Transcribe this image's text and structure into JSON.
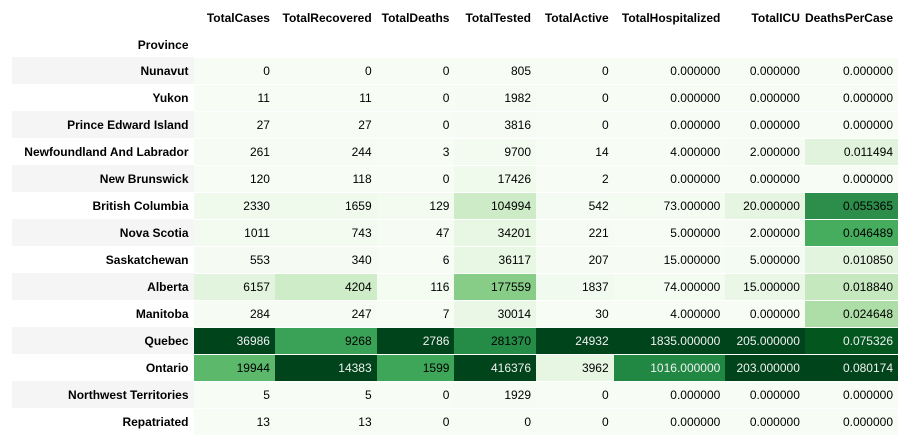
{
  "index_name": "Province",
  "columns": [
    "TotalCases",
    "TotalRecovered",
    "TotalDeaths",
    "TotalTested",
    "TotalActive",
    "TotalHospitalized",
    "TotalICU",
    "DeathsPerCase"
  ],
  "rows": [
    {
      "province": "Nunavut",
      "values": [
        "0",
        "0",
        "0",
        "805",
        "0",
        "0.000000",
        "0.000000",
        "0.000000"
      ],
      "colors": [
        "#f7fcf5",
        "#f7fcf5",
        "#f7fcf5",
        "#f7fcf5",
        "#f7fcf5",
        "#f7fcf5",
        "#f7fcf5",
        "#f7fcf5"
      ]
    },
    {
      "province": "Yukon",
      "values": [
        "11",
        "11",
        "0",
        "1982",
        "0",
        "0.000000",
        "0.000000",
        "0.000000"
      ],
      "colors": [
        "#f7fcf5",
        "#f7fcf5",
        "#f7fcf5",
        "#f6fcf4",
        "#f7fcf5",
        "#f7fcf5",
        "#f7fcf5",
        "#f7fcf5"
      ]
    },
    {
      "province": "Prince Edward Island",
      "values": [
        "27",
        "27",
        "0",
        "3816",
        "0",
        "0.000000",
        "0.000000",
        "0.000000"
      ],
      "colors": [
        "#f7fcf5",
        "#f7fcf5",
        "#f7fcf5",
        "#f6fcf4",
        "#f7fcf5",
        "#f7fcf5",
        "#f7fcf5",
        "#f7fcf5"
      ]
    },
    {
      "province": "Newfoundland And Labrador",
      "values": [
        "261",
        "244",
        "3",
        "9700",
        "14",
        "4.000000",
        "2.000000",
        "0.011494"
      ],
      "colors": [
        "#f6fcf4",
        "#f6fcf4",
        "#f7fcf5",
        "#f3faf0",
        "#f7fcf5",
        "#f7fcf5",
        "#f6fcf4",
        "#e1f3dc"
      ]
    },
    {
      "province": "New Brunswick",
      "values": [
        "120",
        "118",
        "0",
        "17426",
        "2",
        "0.000000",
        "0.000000",
        "0.000000"
      ],
      "colors": [
        "#f7fcf5",
        "#f7fcf5",
        "#f7fcf5",
        "#eff9ec",
        "#f7fcf5",
        "#f7fcf5",
        "#f7fcf5",
        "#f7fcf5"
      ]
    },
    {
      "province": "British Columbia",
      "values": [
        "2330",
        "1659",
        "129",
        "104994",
        "542",
        "73.000000",
        "20.000000",
        "0.055365"
      ],
      "colors": [
        "#eff9ec",
        "#eff9ec",
        "#f3faf0",
        "#ccebc6",
        "#f4fbf2",
        "#f4fbf1",
        "#e5f5e1",
        "#2c8e4a"
      ]
    },
    {
      "province": "Nova Scotia",
      "values": [
        "1011",
        "743",
        "47",
        "34201",
        "221",
        "5.000000",
        "2.000000",
        "0.046489"
      ],
      "colors": [
        "#f3faf0",
        "#f3faf0",
        "#f6fcf4",
        "#e8f6e4",
        "#f6fcf4",
        "#f7fcf5",
        "#f6fcf4",
        "#45ad5d"
      ]
    },
    {
      "province": "Saskatchewan",
      "values": [
        "553",
        "340",
        "6",
        "36117",
        "207",
        "15.000000",
        "5.000000",
        "0.010850"
      ],
      "colors": [
        "#f5fbf3",
        "#f5fbf3",
        "#f7fcf5",
        "#e8f6e4",
        "#f6fcf4",
        "#f6fcf4",
        "#f4fbf2",
        "#e3f4de"
      ]
    },
    {
      "province": "Alberta",
      "values": [
        "6157",
        "4204",
        "116",
        "177559",
        "1837",
        "74.000000",
        "15.000000",
        "0.018840"
      ],
      "colors": [
        "#e2f4dd",
        "#cdecc7",
        "#f4fbf1",
        "#88cd87",
        "#f1faee",
        "#f4fbf1",
        "#eaf7e6",
        "#c5e8bf"
      ]
    },
    {
      "province": "Manitoba",
      "values": [
        "284",
        "247",
        "7",
        "30014",
        "30",
        "4.000000",
        "0.000000",
        "0.024648"
      ],
      "colors": [
        "#f6fcf4",
        "#f6fcf4",
        "#f7fcf5",
        "#eaf7e6",
        "#f7fcf5",
        "#f7fcf5",
        "#f7fcf5",
        "#aedea7"
      ]
    },
    {
      "province": "Quebec",
      "values": [
        "36986",
        "9268",
        "2786",
        "281370",
        "24932",
        "1835.000000",
        "205.000000",
        "0.075326"
      ],
      "colors": [
        "#00441b",
        "#39a257",
        "#00441b",
        "#248c46",
        "#00441b",
        "#00441b",
        "#00441b",
        "#04561f"
      ]
    },
    {
      "province": "Ontario",
      "values": [
        "19944",
        "14383",
        "1599",
        "416376",
        "3962",
        "1016.000000",
        "203.000000",
        "0.080174"
      ],
      "colors": [
        "#5cb86a",
        "#00441b",
        "#3ea659",
        "#00441b",
        "#e7f6e3",
        "#208843",
        "#00441b",
        "#00441b"
      ]
    },
    {
      "province": "Northwest Territories",
      "values": [
        "5",
        "5",
        "0",
        "1929",
        "0",
        "0.000000",
        "0.000000",
        "0.000000"
      ],
      "colors": [
        "#f7fcf5",
        "#f7fcf5",
        "#f7fcf5",
        "#f6fcf4",
        "#f7fcf5",
        "#f7fcf5",
        "#f7fcf5",
        "#f7fcf5"
      ]
    },
    {
      "province": "Repatriated",
      "values": [
        "13",
        "13",
        "0",
        "0",
        "0",
        "0.000000",
        "0.000000",
        "0.000000"
      ],
      "colors": [
        "#f7fcf5",
        "#f7fcf5",
        "#f7fcf5",
        "#f7fcf5",
        "#f7fcf5",
        "#f7fcf5",
        "#f7fcf5",
        "#f7fcf5"
      ]
    }
  ]
}
